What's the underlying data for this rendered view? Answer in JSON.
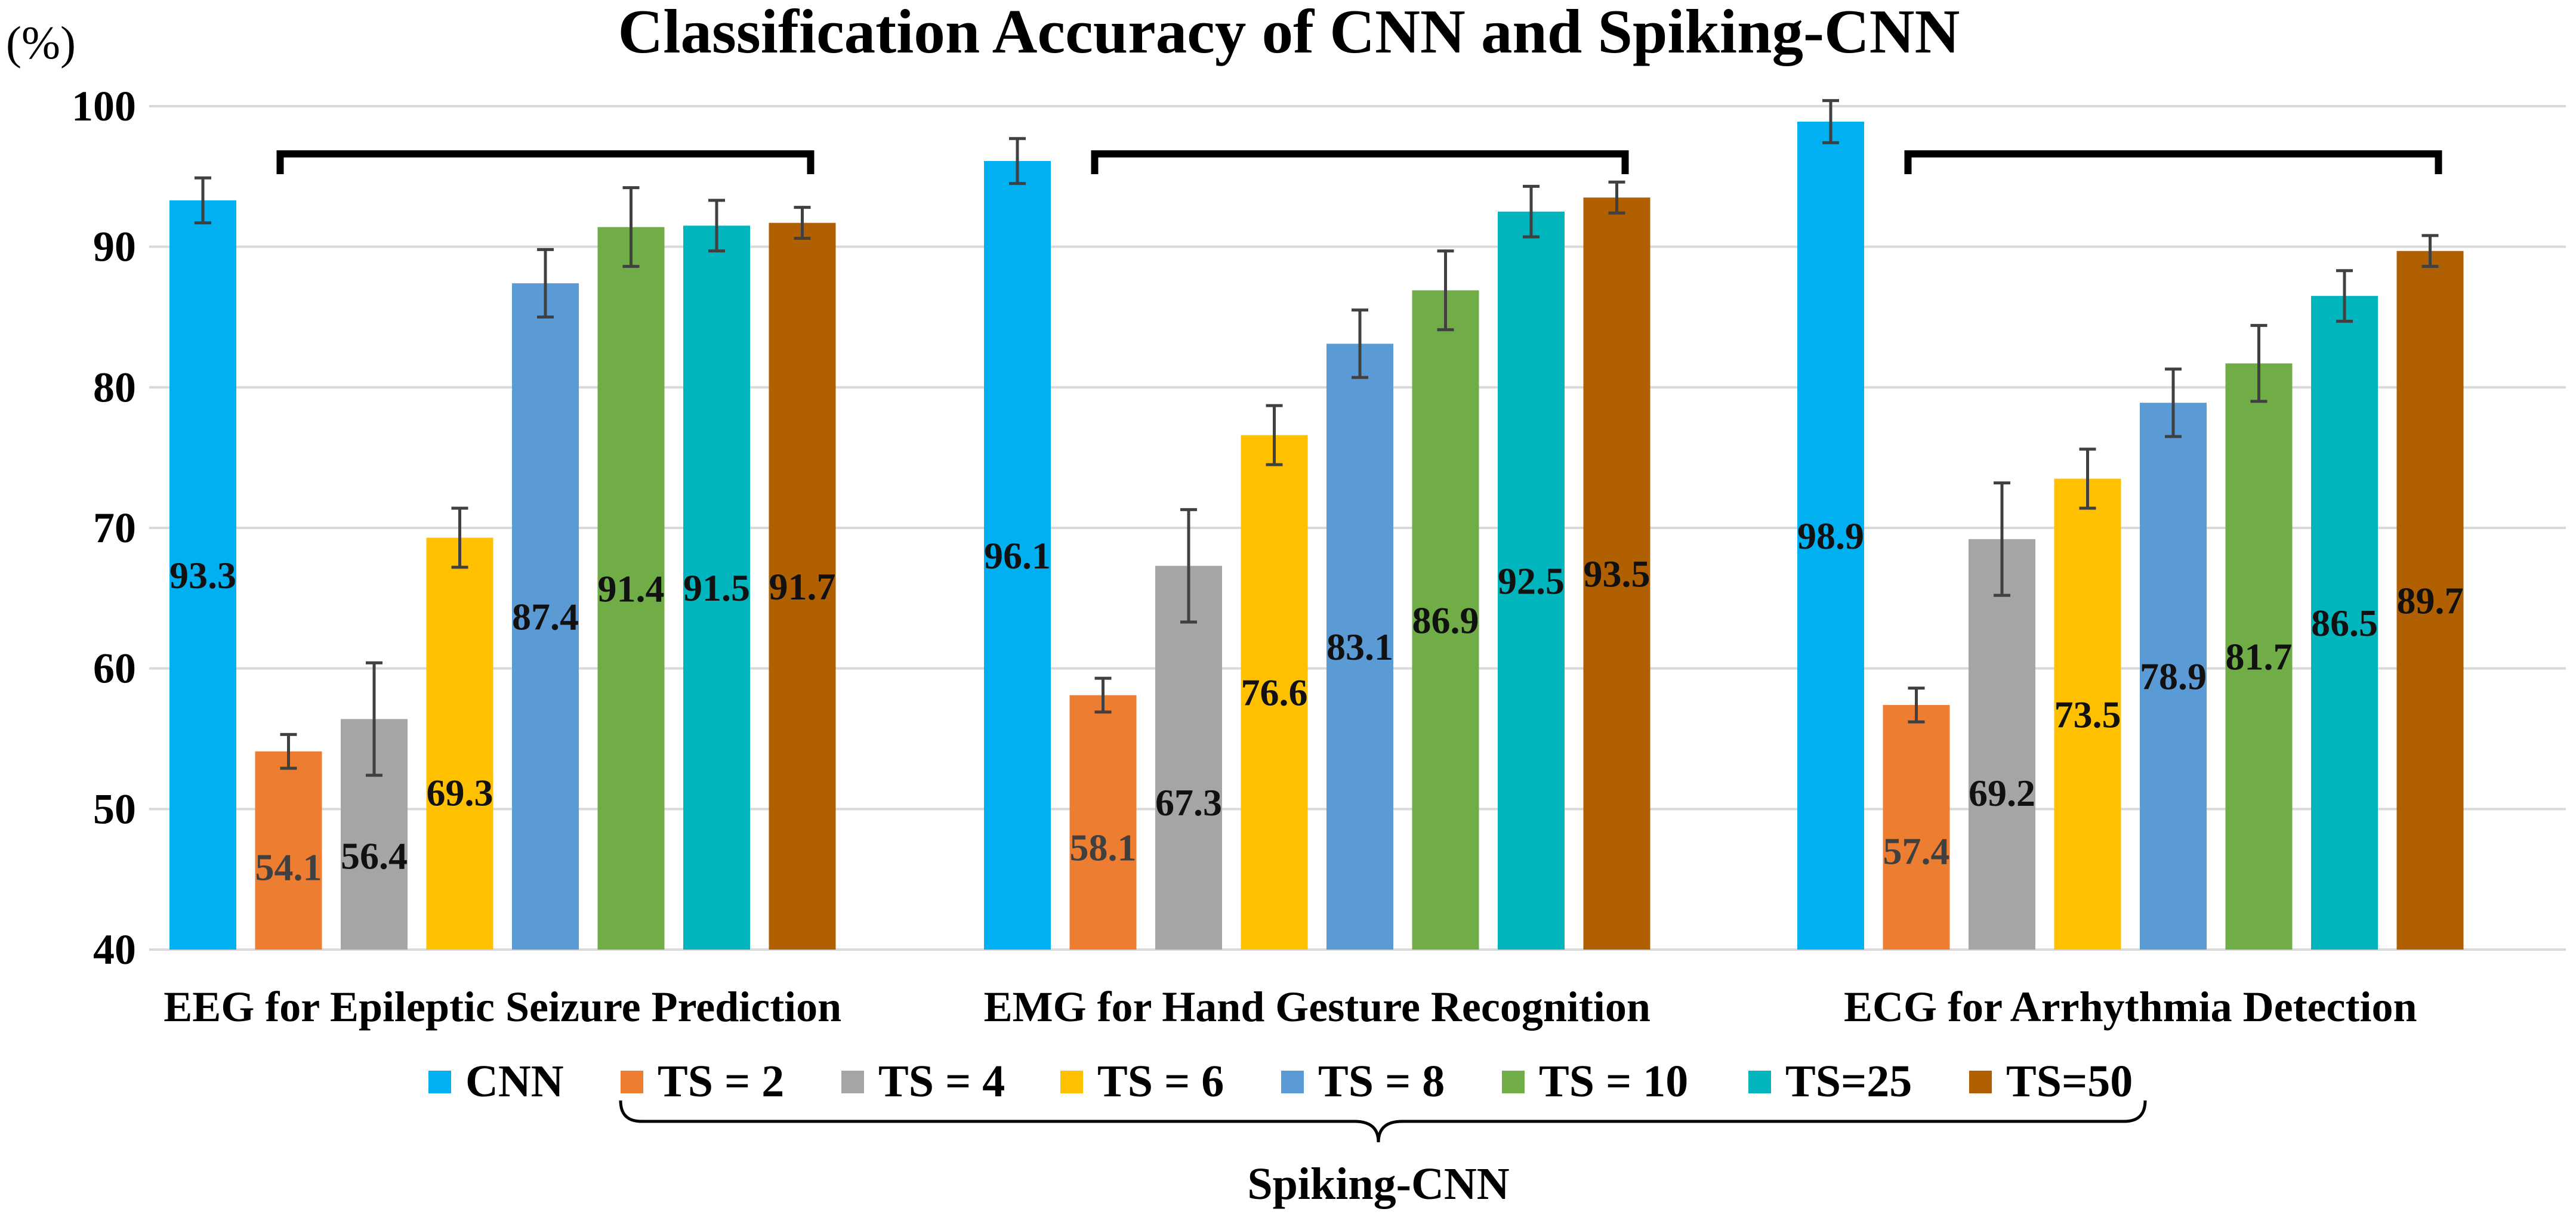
{
  "chart_data": {
    "type": "bar",
    "title": "Classification Accuracy of CNN and Spiking-CNN",
    "ylabel": "(%)",
    "xlabel": "",
    "ylim": [
      40,
      100
    ],
    "yticks": [
      40,
      50,
      60,
      70,
      80,
      90,
      100
    ],
    "grid": true,
    "legend_position": "bottom",
    "group_label": "Spiking-CNN",
    "categories": [
      "EEG for Epileptic Seizure Prediction",
      "EMG for Hand Gesture Recognition",
      "ECG for Arrhythmia Detection"
    ],
    "series": [
      {
        "name": "CNN",
        "color": "#00b0f0",
        "values": [
          93.3,
          96.1,
          98.9
        ],
        "errors": [
          1.6,
          1.6,
          1.5
        ],
        "labels": [
          "93.3",
          "96.1",
          "98.9"
        ]
      },
      {
        "name": "TS = 2",
        "color": "#ed7d31",
        "values": [
          54.1,
          58.1,
          57.4
        ],
        "errors": [
          1.2,
          1.2,
          1.2
        ],
        "labels": [
          "54.1",
          "58.1",
          "57.4"
        ]
      },
      {
        "name": "TS = 4",
        "color": "#a5a5a5",
        "values": [
          56.4,
          67.3,
          69.2
        ],
        "errors": [
          4.0,
          4.0,
          4.0
        ],
        "labels": [
          "56.4",
          "67.3",
          "69.2"
        ]
      },
      {
        "name": "TS = 6",
        "color": "#ffc000",
        "values": [
          69.3,
          76.6,
          73.5
        ],
        "errors": [
          2.1,
          2.1,
          2.1
        ],
        "labels": [
          "69.3",
          "76.6",
          "73.5"
        ]
      },
      {
        "name": "TS = 8",
        "color": "#5b9bd5",
        "values": [
          87.4,
          83.1,
          78.9
        ],
        "errors": [
          2.4,
          2.4,
          2.4
        ],
        "labels": [
          "87.4",
          "83.1",
          "78.9"
        ]
      },
      {
        "name": "TS = 10",
        "color": "#70ad47",
        "values": [
          91.4,
          86.9,
          81.7
        ],
        "errors": [
          2.8,
          2.8,
          2.7
        ],
        "labels": [
          "91.4",
          "86.9",
          "81.7"
        ]
      },
      {
        "name": "TS=25",
        "color": "#00b5bd",
        "values": [
          91.5,
          92.5,
          86.5
        ],
        "errors": [
          1.8,
          1.8,
          1.8
        ],
        "labels": [
          "91.5",
          "92.5",
          "86.5"
        ]
      },
      {
        "name": "TS=50",
        "color": "#b06000",
        "values": [
          91.7,
          93.5,
          89.7
        ],
        "errors": [
          1.1,
          1.1,
          1.1
        ],
        "labels": [
          "91.7",
          "93.5",
          "89.7"
        ]
      }
    ]
  }
}
